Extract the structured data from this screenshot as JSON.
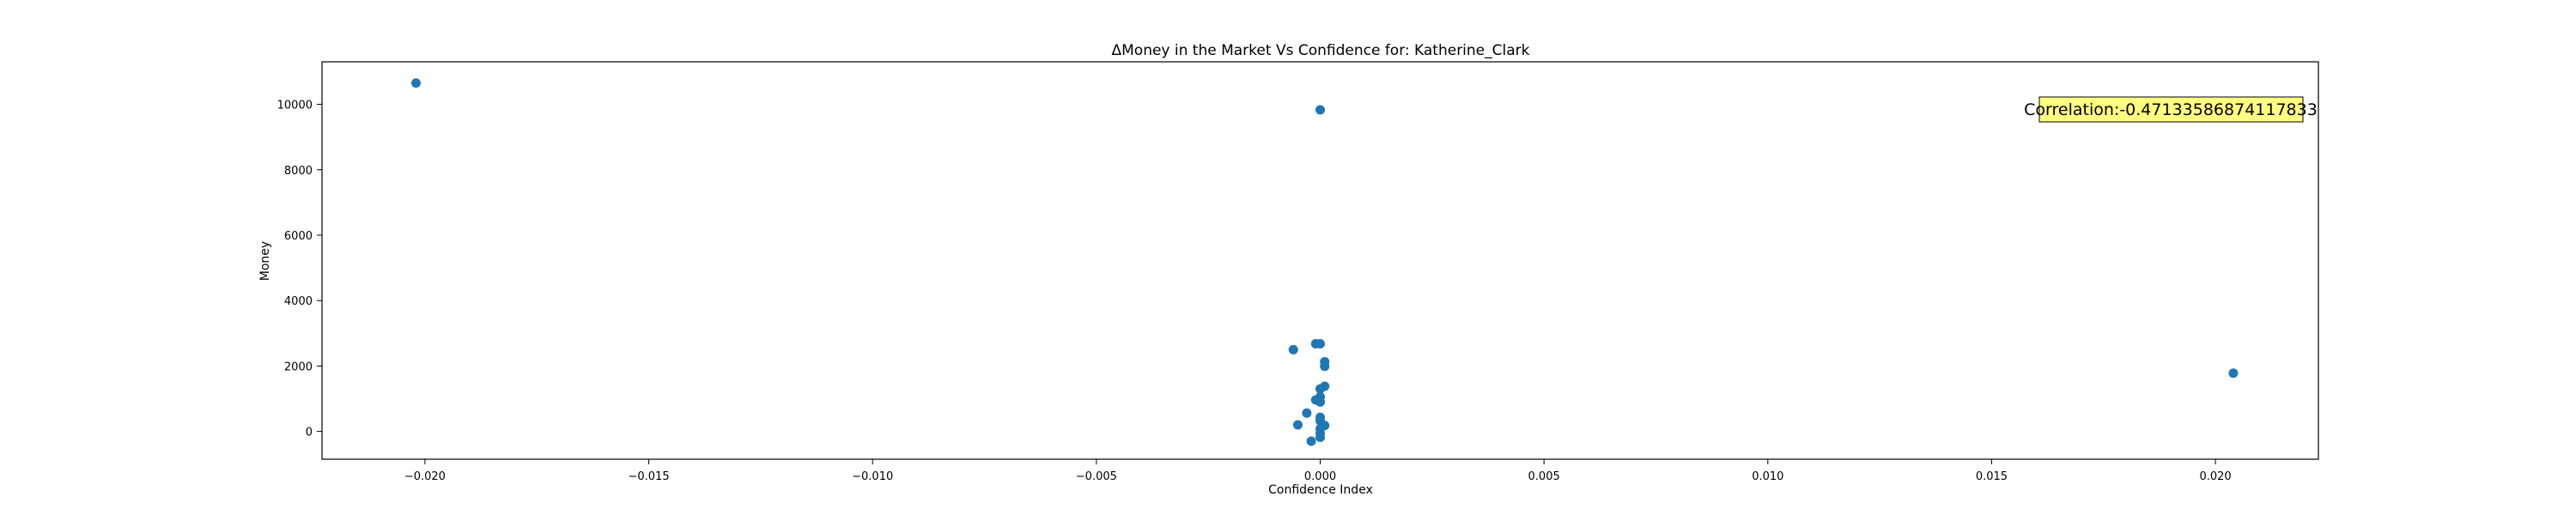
{
  "chart_data": {
    "type": "scatter",
    "title": "ΔMoney in the Market Vs Confidence for: Katherine_Clark",
    "xlabel": "Confidence Index",
    "ylabel": "Money",
    "xlim": [
      -0.0223,
      0.0223
    ],
    "ylim": [
      -850,
      11300
    ],
    "xticks": [
      -0.02,
      -0.015,
      -0.01,
      -0.005,
      0.0,
      0.005,
      0.01,
      0.015,
      0.02
    ],
    "xtick_labels": [
      "−0.020",
      "−0.015",
      "−0.010",
      "−0.005",
      "0.000",
      "0.005",
      "0.010",
      "0.015",
      "0.020"
    ],
    "yticks": [
      0,
      2000,
      4000,
      6000,
      8000,
      10000
    ],
    "ytick_labels": [
      "0",
      "2000",
      "4000",
      "6000",
      "8000",
      "10000"
    ],
    "grid": false,
    "marker_color": "#1f77b4",
    "annotation": {
      "text": "Correlation:-0.47133586874117833",
      "placement": "top-right",
      "background": "#ffff80"
    },
    "points": [
      {
        "x": -0.0202,
        "y": 10650
      },
      {
        "x": 0.0,
        "y": 9830
      },
      {
        "x": 0.0204,
        "y": 1780
      },
      {
        "x": -0.0006,
        "y": 2500
      },
      {
        "x": -0.0001,
        "y": 2680
      },
      {
        "x": 0.0,
        "y": 2680
      },
      {
        "x": 0.0001,
        "y": 2130
      },
      {
        "x": 0.0001,
        "y": 1990
      },
      {
        "x": 0.0001,
        "y": 1380
      },
      {
        "x": 0.0,
        "y": 1300
      },
      {
        "x": 0.0,
        "y": 1060
      },
      {
        "x": -0.0001,
        "y": 960
      },
      {
        "x": 0.0,
        "y": 900
      },
      {
        "x": -0.0003,
        "y": 560
      },
      {
        "x": 0.0,
        "y": 430
      },
      {
        "x": 0.0,
        "y": 320
      },
      {
        "x": -0.0005,
        "y": 200
      },
      {
        "x": 0.0001,
        "y": 180
      },
      {
        "x": 0.0,
        "y": 80
      },
      {
        "x": 0.0,
        "y": -60
      },
      {
        "x": 0.0,
        "y": -180
      },
      {
        "x": -0.0002,
        "y": -300
      }
    ]
  }
}
